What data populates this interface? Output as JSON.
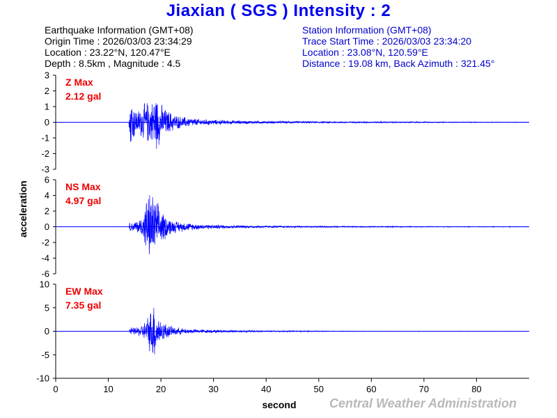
{
  "header": {
    "title": "Jiaxian ( SGS ) Intensity : 2"
  },
  "earthquake_info": {
    "heading": "Earthquake Information  (GMT+08)",
    "origin_time": "Origin Time : 2026/03/03 23:34:29",
    "location": "Location : 23.22°N, 120.47°E",
    "depth_magnitude": "Depth : 8.5km , Magnitude : 4.5"
  },
  "station_info": {
    "heading": "Station Information  (GMT+08)",
    "trace_start": "Trace Start Time : 2026/03/03 23:34:20",
    "location": "Location : 23.08°N, 120.59°E",
    "distance": "Distance : 19.08 km, Back Azimuth : 321.45°"
  },
  "footer": {
    "watermark": "Central Weather Administration"
  },
  "chart_data": {
    "type": "line",
    "xlabel": "second",
    "ylabel": "acceleration",
    "xlim": [
      0,
      90
    ],
    "x_ticks": [
      0,
      10,
      20,
      30,
      40,
      50,
      60,
      70,
      80
    ],
    "grid": false,
    "line_color": "#0000ff",
    "label_color": "#ee0000",
    "series": [
      {
        "name": "Z Max",
        "label_value": "2.12 gal",
        "ylim": [
          -3,
          3
        ],
        "y_ticks": [
          -3,
          -2,
          -1,
          0,
          1,
          2,
          3
        ],
        "envelope": {
          "t": [
            0,
            13.9,
            14.0,
            14.3,
            14.8,
            15.5,
            16.5,
            17.5,
            18.2,
            19.0,
            20.0,
            21.0,
            22.0,
            23.0,
            24.0,
            25.0,
            27.0,
            30.0,
            35.0,
            40.0,
            50.0,
            60.0,
            70.0,
            90.0
          ],
          "amp": [
            0.005,
            0.01,
            0.6,
            2.12,
            1.3,
            0.8,
            1.2,
            1.5,
            1.4,
            2.1,
            1.3,
            0.9,
            0.7,
            0.5,
            0.4,
            0.35,
            0.25,
            0.18,
            0.12,
            0.09,
            0.06,
            0.05,
            0.04,
            0.02
          ]
        }
      },
      {
        "name": "NS Max",
        "label_value": "4.97 gal",
        "ylim": [
          -6,
          6
        ],
        "y_ticks": [
          -6,
          -4,
          -2,
          0,
          2,
          4,
          6
        ],
        "envelope": {
          "t": [
            0,
            13.9,
            14.1,
            14.6,
            15.5,
            16.5,
            17.2,
            18.0,
            18.5,
            19.2,
            20.0,
            21.0,
            22.0,
            23.0,
            25.0,
            27.0,
            30.0,
            35.0,
            40.0,
            50.0,
            60.0,
            70.0,
            90.0
          ],
          "amp": [
            0.01,
            0.02,
            0.7,
            0.6,
            0.9,
            1.4,
            3.9,
            4.97,
            4.5,
            3.5,
            2.5,
            1.6,
            1.0,
            0.8,
            0.55,
            0.4,
            0.3,
            0.2,
            0.15,
            0.1,
            0.08,
            0.06,
            0.04
          ]
        }
      },
      {
        "name": "EW Max",
        "label_value": "7.35 gal",
        "ylim": [
          -10,
          10
        ],
        "y_ticks": [
          -10,
          -5,
          0,
          5,
          10
        ],
        "envelope": {
          "t": [
            0,
            13.9,
            14.1,
            14.6,
            15.5,
            16.5,
            17.2,
            18.0,
            18.7,
            19.3,
            20.0,
            21.0,
            22.0,
            23.0,
            25.0,
            27.0,
            30.0,
            35.0,
            40.0,
            45.0,
            50.0,
            60.0,
            90.0
          ],
          "amp": [
            0.01,
            0.02,
            1.0,
            0.8,
            1.0,
            1.6,
            2.8,
            5.0,
            7.35,
            4.0,
            2.6,
            1.8,
            1.2,
            0.9,
            0.6,
            0.45,
            0.35,
            0.25,
            0.18,
            0.15,
            0.1,
            0.06,
            0.04
          ]
        }
      }
    ]
  }
}
